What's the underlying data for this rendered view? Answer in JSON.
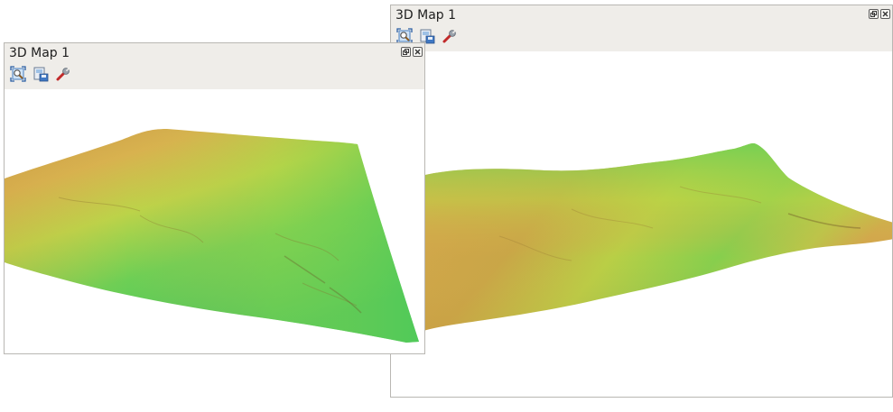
{
  "windows": [
    {
      "id": "back",
      "title": "3D Map 1",
      "toolbar": [
        {
          "icon": "zoom-full-icon",
          "kind": "zoom-full"
        },
        {
          "icon": "save-image-icon",
          "kind": "save"
        },
        {
          "icon": "configure-icon",
          "kind": "configure"
        }
      ]
    },
    {
      "id": "front",
      "title": "3D Map 1",
      "toolbar": [
        {
          "icon": "zoom-full-icon",
          "kind": "zoom-full"
        },
        {
          "icon": "save-image-icon",
          "kind": "save"
        },
        {
          "icon": "configure-icon",
          "kind": "configure"
        }
      ]
    }
  ],
  "colors": {
    "header_bg": "#efede9",
    "terrain_low": "#3fc65a",
    "terrain_mid": "#a9d443",
    "terrain_high": "#d1a44c"
  }
}
